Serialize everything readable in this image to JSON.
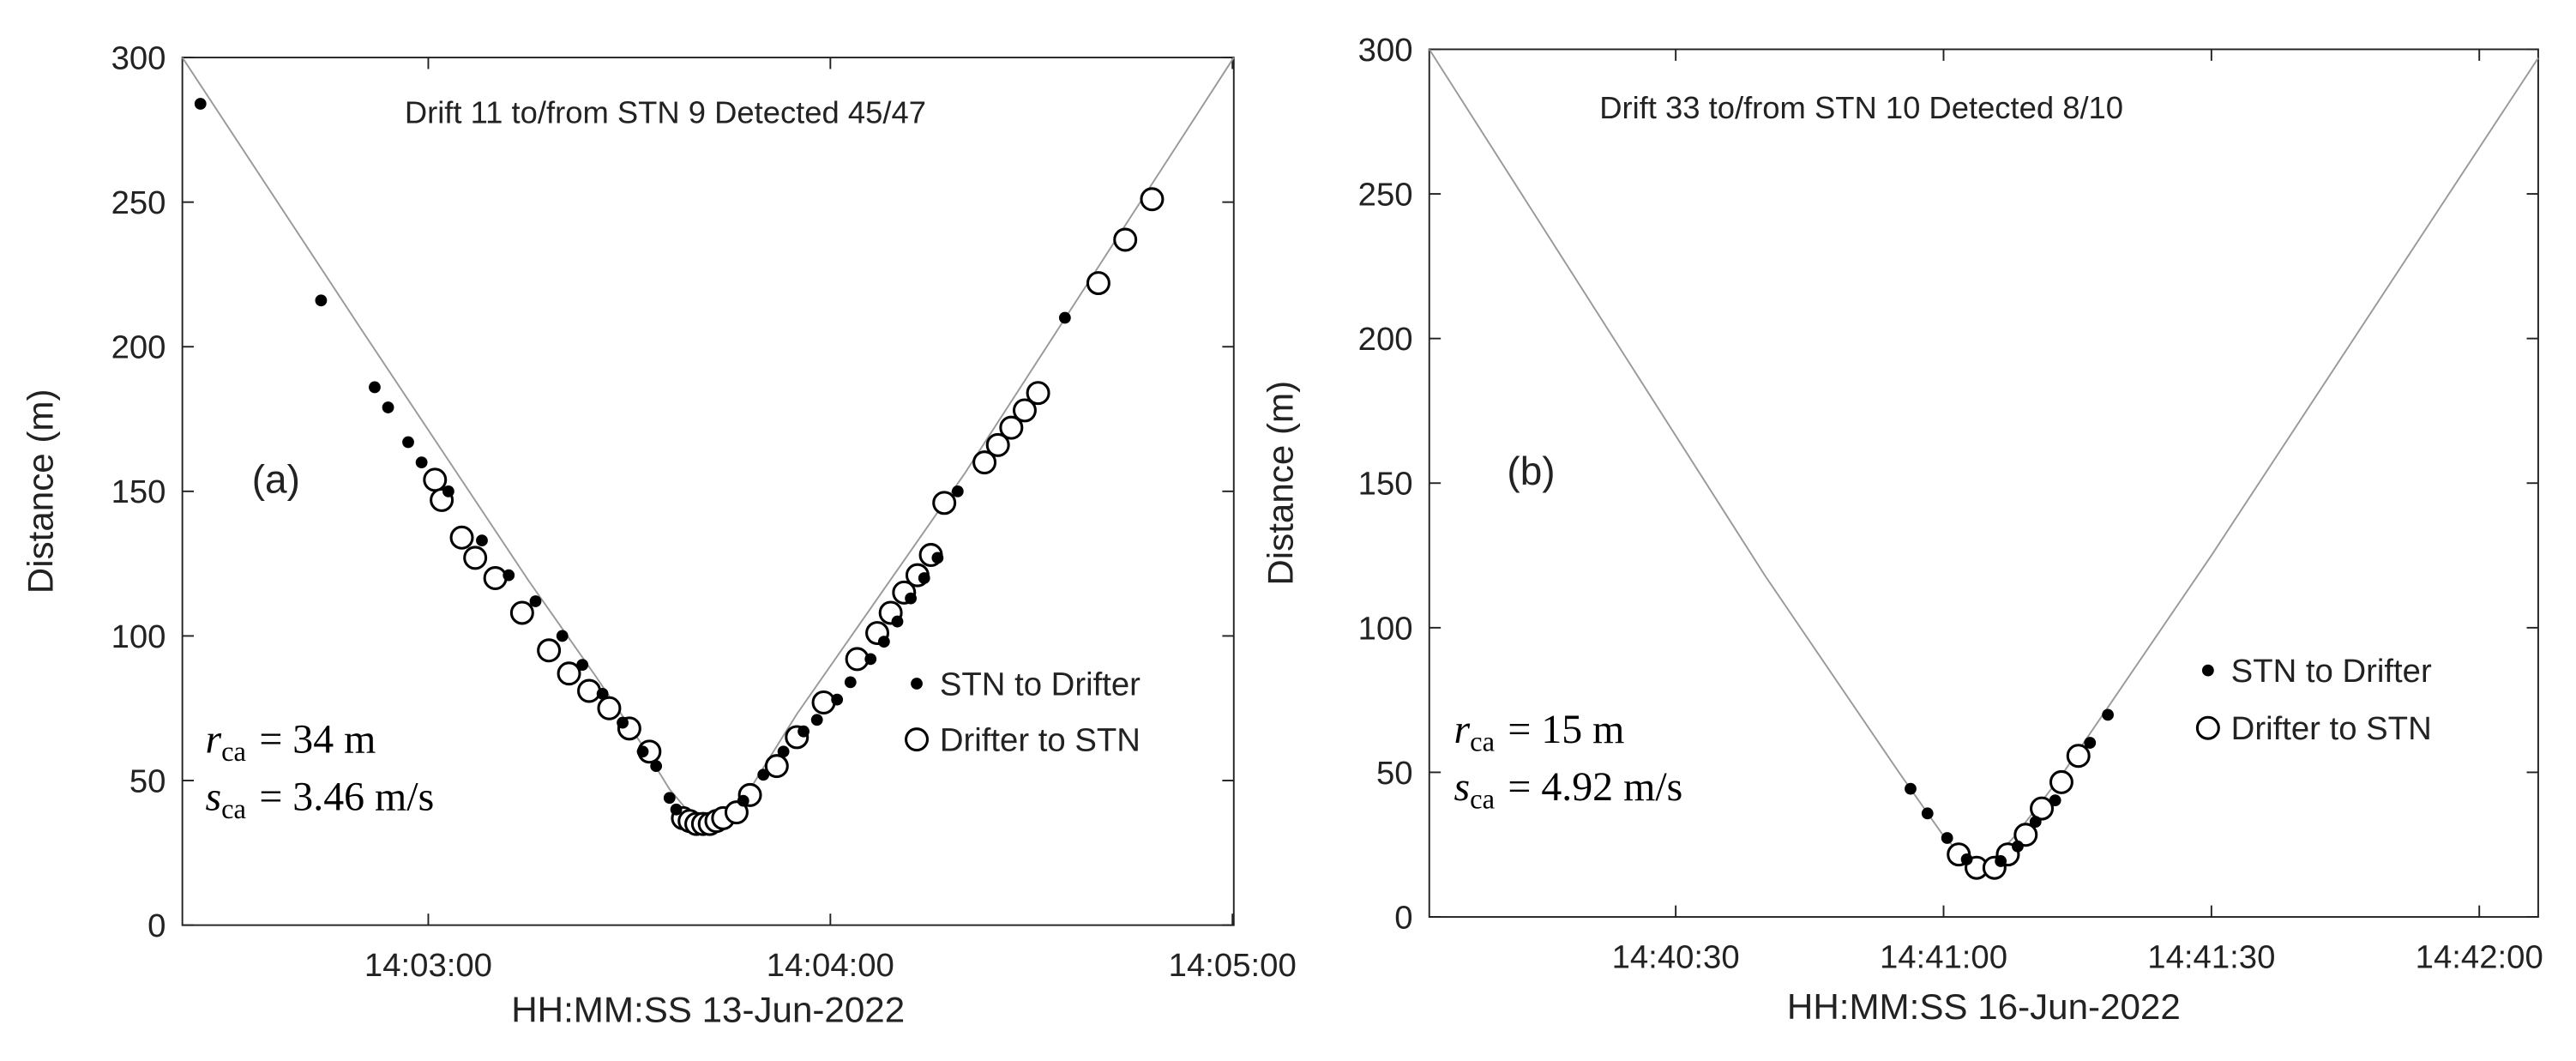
{
  "chart_data": [
    {
      "type": "scatter",
      "title": "Drift 11 to/from STN 9 Detected 45/47",
      "panel_label": "(a)",
      "xlabel": "HH:MM:SS 13-Jun-2022",
      "ylabel": "Distance (m)",
      "xlim": [
        50543.3,
        50700.2
      ],
      "ylim": [
        0,
        300
      ],
      "xticks": [
        {
          "value": 50580,
          "label": "14:03:00"
        },
        {
          "value": 50640,
          "label": "14:04:00"
        },
        {
          "value": 50700,
          "label": "14:05:00"
        }
      ],
      "yticks": [
        0,
        50,
        100,
        150,
        200,
        250,
        300
      ],
      "legend": "right",
      "annotations": [
        {
          "symbol": "r",
          "subscript": "ca",
          "text": "= 34 m"
        },
        {
          "symbol": "s",
          "subscript": "ca",
          "text": "= 3.46 m/s"
        }
      ],
      "curve": {
        "color": "#999999",
        "x": [
          50543.3,
          50570,
          50595,
          50605,
          50612,
          50616,
          50620,
          50624,
          50628,
          50635,
          50660,
          50700.2
        ],
        "values": [
          300,
          206,
          119,
          86,
          62,
          47,
          36,
          36,
          47,
          73,
          156,
          300
        ]
      },
      "series": [
        {
          "name": "Drifter to STN",
          "marker": "open",
          "color": "#000000",
          "x": [
            50581,
            50582,
            50585,
            50587,
            50590,
            50594,
            50598,
            50601,
            50604,
            50607,
            50610,
            50613,
            50618,
            50619,
            50620,
            50621,
            50622,
            50623,
            50624,
            50626,
            50628,
            50632,
            50635,
            50639,
            50644,
            50647,
            50649,
            50651,
            50653,
            50655,
            50657,
            50663,
            50665,
            50667,
            50669,
            50671,
            50680,
            50684,
            50688
          ],
          "values": [
            154,
            147,
            134,
            127,
            120,
            108,
            95,
            87,
            81,
            75,
            68,
            60,
            37,
            36,
            35,
            35,
            35,
            36,
            37,
            39,
            45,
            55,
            65,
            77,
            92,
            101,
            108,
            115,
            121,
            128,
            146,
            160,
            166,
            172,
            178,
            184,
            222,
            237,
            251
          ]
        },
        {
          "name": "STN to Drifter",
          "marker": "filled",
          "color": "#000000",
          "x": [
            50546,
            50564,
            50572,
            50574,
            50577,
            50579,
            50583,
            50588,
            50592,
            50596,
            50600,
            50603,
            50606,
            50609,
            50612,
            50614,
            50616,
            50617,
            50627,
            50630,
            50633,
            50636,
            50638,
            50641,
            50643,
            50646,
            50648,
            50650,
            50652,
            50654,
            50656,
            50659,
            50675
          ],
          "values": [
            284,
            216,
            186,
            179,
            167,
            160,
            150,
            133,
            121,
            112,
            100,
            90,
            80,
            70,
            60,
            55,
            44,
            40,
            43,
            52,
            60,
            67,
            71,
            78,
            84,
            92,
            98,
            105,
            113,
            120,
            127,
            150,
            210
          ]
        }
      ]
    },
    {
      "type": "scatter",
      "title": "Drift 33 to/from STN 10 Detected 8/10",
      "panel_label": "(b)",
      "xlabel": "HH:MM:SS 16-Jun-2022",
      "ylabel": "Distance (m)",
      "xlim": [
        52802.4,
        52926.6
      ],
      "ylim": [
        0,
        300
      ],
      "xticks": [
        {
          "value": 52830,
          "label": "14:40:30"
        },
        {
          "value": 52860,
          "label": "14:41:00"
        },
        {
          "value": 52890,
          "label": "14:41:30"
        },
        {
          "value": 52920,
          "label": "14:42:00"
        }
      ],
      "yticks": [
        0,
        50,
        100,
        150,
        200,
        250,
        300
      ],
      "legend": "right",
      "annotations": [
        {
          "symbol": "r",
          "subscript": "ca",
          "text": "= 15 m"
        },
        {
          "symbol": "s",
          "subscript": "ca",
          "text": "= 4.92 m/s"
        }
      ],
      "curve": {
        "color": "#999999",
        "x": [
          52802.4,
          52840,
          52855,
          52860,
          52864,
          52868,
          52873,
          52890,
          52926.6
        ],
        "values": [
          300,
          118,
          50,
          28,
          15,
          28,
          48,
          125,
          297
        ]
      },
      "series": [
        {
          "name": "Drifter to STN",
          "marker": "open",
          "color": "#000000",
          "x": [
            52861.7,
            52863.7,
            52865.7,
            52867.2,
            52869.2,
            52871.0,
            52873.2,
            52875.1
          ],
          "values": [
            21.6,
            17.0,
            17.0,
            21.6,
            28.4,
            37.5,
            46.6,
            55.7
          ]
        },
        {
          "name": "STN to Drifter",
          "marker": "filled",
          "color": "#000000",
          "x": [
            52856.3,
            52858.2,
            52860.4,
            52862.6,
            52866.4,
            52868.3,
            52870.3,
            52872.5,
            52876.4,
            52878.4
          ],
          "values": [
            44.3,
            35.8,
            27.3,
            19.9,
            19.3,
            24.4,
            32.9,
            40.3,
            60.2,
            69.9
          ]
        }
      ]
    }
  ]
}
